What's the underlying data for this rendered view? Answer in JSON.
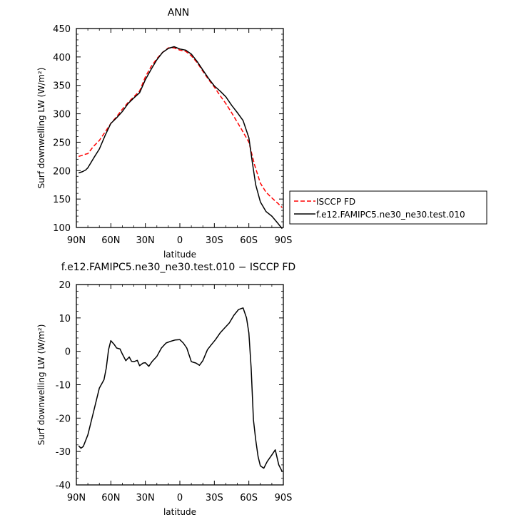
{
  "chart_data": [
    {
      "type": "line",
      "title": "ANN",
      "xlabel": "latitude",
      "ylabel": "Surf downwelling LW (W/m²)",
      "ylim": [
        100,
        450
      ],
      "yticks": [
        100,
        150,
        200,
        250,
        300,
        350,
        400,
        450
      ],
      "xlim": [
        90,
        -90
      ],
      "xticks": [
        90,
        60,
        30,
        0,
        -30,
        -60,
        -90
      ],
      "xticklabels": [
        "90N",
        "60N",
        "30N",
        "0",
        "30S",
        "60S",
        "90S"
      ],
      "legend": "right, outside plot",
      "series": [
        {
          "name": "ISCCP FD",
          "color": "#ff0000",
          "dash": "dashed",
          "x": [
            88,
            85,
            82,
            80,
            75,
            70,
            65,
            60,
            55,
            50,
            45,
            40,
            35,
            30,
            25,
            20,
            15,
            10,
            5,
            0,
            -5,
            -10,
            -15,
            -20,
            -25,
            -30,
            -35,
            -40,
            -45,
            -50,
            -55,
            -60,
            -65,
            -70,
            -75,
            -80,
            -85,
            -89
          ],
          "values": [
            225,
            227,
            229,
            230,
            243,
            253,
            268,
            283,
            295,
            308,
            320,
            330,
            340,
            365,
            383,
            397,
            408,
            416,
            416,
            412,
            410,
            402,
            390,
            375,
            360,
            347,
            332,
            318,
            302,
            285,
            268,
            250,
            210,
            178,
            162,
            152,
            143,
            135
          ]
        },
        {
          "name": "f.e12.FAMIPC5.ne30_ne30.test.010",
          "color": "#000000",
          "dash": "solid",
          "x": [
            88,
            85,
            82,
            80,
            75,
            70,
            65,
            60,
            55,
            50,
            45,
            40,
            35,
            30,
            25,
            20,
            15,
            10,
            5,
            0,
            -5,
            -10,
            -15,
            -20,
            -25,
            -30,
            -35,
            -40,
            -45,
            -50,
            -55,
            -60,
            -63,
            -66,
            -70,
            -75,
            -80,
            -85,
            -89
          ],
          "values": [
            196,
            198,
            201,
            205,
            222,
            238,
            262,
            283,
            293,
            304,
            318,
            328,
            337,
            360,
            378,
            395,
            408,
            415,
            418,
            414,
            412,
            405,
            392,
            377,
            362,
            349,
            340,
            330,
            315,
            302,
            288,
            258,
            215,
            175,
            145,
            128,
            120,
            108,
            98
          ]
        }
      ]
    },
    {
      "type": "line",
      "title": "f.e12.FAMIPC5.ne30_ne30.test.010 − ISCCP FD",
      "xlabel": "latitude",
      "ylabel": "Surf downwelling LW (W/m²)",
      "ylim": [
        -40,
        20
      ],
      "yticks": [
        -40,
        -30,
        -20,
        -10,
        0,
        10,
        20
      ],
      "xlim": [
        90,
        -90
      ],
      "xticks": [
        90,
        60,
        30,
        0,
        -30,
        -60,
        -90
      ],
      "xticklabels": [
        "90N",
        "60N",
        "30N",
        "0",
        "30S",
        "60S",
        "90S"
      ],
      "series": [
        {
          "name": "f.e12.FAMIPC5.ne30_ne30.test.010 − ISCCP FD",
          "color": "#000000",
          "dash": "solid",
          "x": [
            88,
            86,
            84,
            80,
            75,
            70,
            66,
            64,
            62,
            60,
            57,
            55,
            52,
            50,
            47,
            44,
            42,
            40,
            37,
            35,
            32,
            30,
            27,
            24,
            20,
            16,
            12,
            8,
            4,
            0,
            -3,
            -6,
            -10,
            -14,
            -17,
            -20,
            -24,
            -27,
            -31,
            -35,
            -39,
            -43,
            -47,
            -51,
            -55,
            -58,
            -60,
            -62,
            -64,
            -66,
            -68,
            -70,
            -73,
            -76,
            -80,
            -83,
            -86,
            -89
          ],
          "values": [
            -28.3,
            -29,
            -28.5,
            -25,
            -18,
            -11,
            -8.5,
            -5,
            0.5,
            3.2,
            2,
            1,
            0.7,
            -0.8,
            -2.8,
            -1.7,
            -3,
            -3.1,
            -2.7,
            -4.3,
            -3.5,
            -3.4,
            -4.5,
            -3,
            -1.5,
            1,
            2.5,
            3,
            3.4,
            3.5,
            2.5,
            1,
            -3.1,
            -3.5,
            -4.2,
            -2.8,
            0.5,
            1.8,
            3.5,
            5.5,
            7,
            8.5,
            10.8,
            12.5,
            13,
            10,
            5.5,
            -5,
            -20.5,
            -26.5,
            -31.5,
            -34.3,
            -35,
            -33,
            -31,
            -29.5,
            -34,
            -36
          ]
        }
      ]
    }
  ]
}
